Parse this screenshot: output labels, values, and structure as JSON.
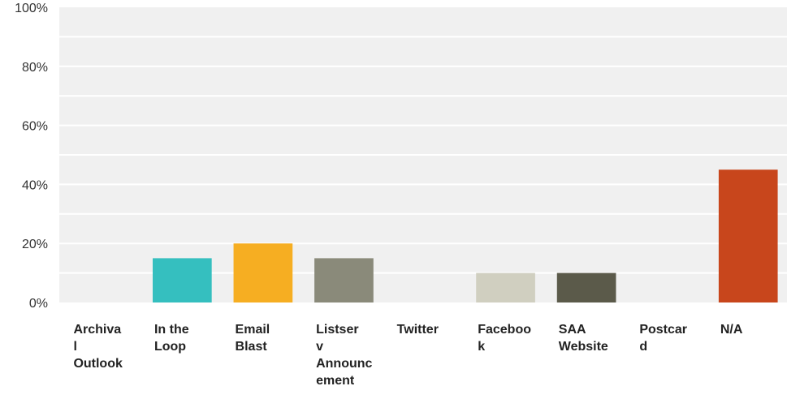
{
  "chart_data": {
    "type": "bar",
    "title": "",
    "xlabel": "",
    "ylabel": "",
    "ylim": [
      0,
      100
    ],
    "grid": true,
    "y_ticks": [
      "0%",
      "20%",
      "40%",
      "60%",
      "80%",
      "100%"
    ],
    "categories": [
      "Archival Outlook",
      "In the Loop",
      "Email Blast",
      "Listserv Announcement",
      "Twitter",
      "Facebook",
      "SAA Website",
      "Postcard",
      "N/A"
    ],
    "category_lines": [
      [
        "Archiva",
        "l",
        "Outlook"
      ],
      [
        "In the",
        "Loop"
      ],
      [
        "Email",
        "Blast"
      ],
      [
        "Listser",
        "v",
        "Announc",
        "ement"
      ],
      [
        "Twitter"
      ],
      [
        "Faceboo",
        "k"
      ],
      [
        "SAA",
        "Website"
      ],
      [
        "Postcar",
        "d"
      ],
      [
        "N/A"
      ]
    ],
    "values": [
      0,
      15,
      20,
      15,
      0,
      10,
      10,
      0,
      45
    ],
    "colors": [
      "#2f6f9f",
      "#35bfbf",
      "#f6ae22",
      "#8a8a7a",
      "#4a7fb0",
      "#d0cfc0",
      "#5b5a4a",
      "#8a8a8a",
      "#c8461c"
    ],
    "background_color": "#f0f0f0",
    "gridline_color": "#ffffff"
  }
}
